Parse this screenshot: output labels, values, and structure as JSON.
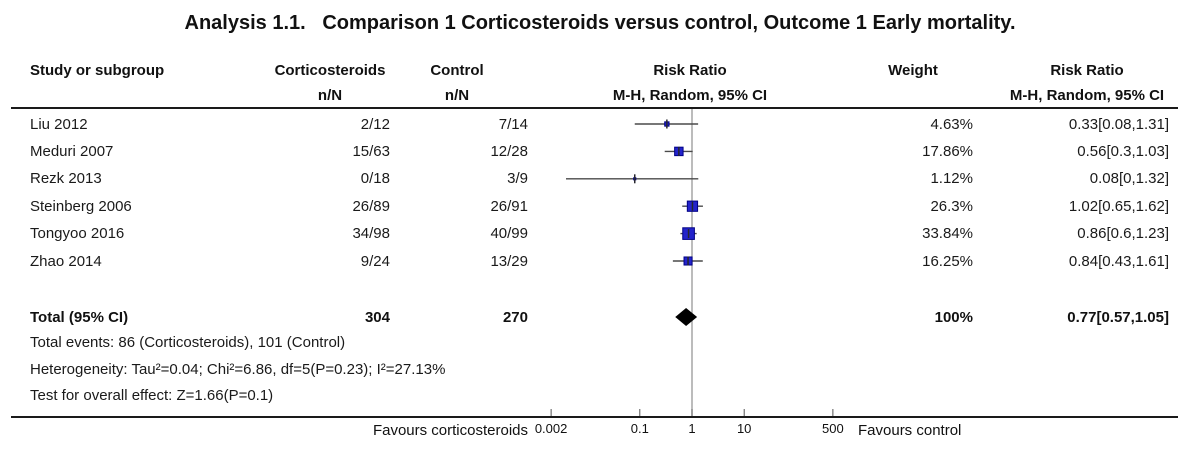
{
  "title": "Analysis 1.1.   Comparison 1 Corticosteroids versus control, Outcome 1 Early mortality.",
  "header": {
    "study": "Study or subgroup",
    "treatment_group": "Corticosteroids",
    "control_group": "Control",
    "nN": "n/N",
    "plot_col_line1": "Risk Ratio",
    "plot_col_line2": "M-H, Random, 95% CI",
    "weight": "Weight",
    "rr_col_line1": "Risk Ratio",
    "rr_col_line2": "M-H, Random, 95% CI"
  },
  "chart_data": {
    "type": "forest",
    "x_scale": "log",
    "axis_ticks": [
      "0.002",
      "0.1",
      "1",
      "10",
      "500"
    ],
    "axis_tick_values": [
      0.002,
      0.1,
      1,
      10,
      500
    ],
    "null_line": 1,
    "favours_left": "Favours corticosteroids",
    "favours_right": "Favours control",
    "studies": [
      {
        "name": "Liu 2012",
        "treatment_nN": "2/12",
        "control_nN": "7/14",
        "rr": 0.33,
        "ci_low": 0.08,
        "ci_high": 1.31,
        "weight_pct": 4.63,
        "weight_label": "4.63%",
        "rr_label": "0.33[0.08,1.31]"
      },
      {
        "name": "Meduri 2007",
        "treatment_nN": "15/63",
        "control_nN": "12/28",
        "rr": 0.56,
        "ci_low": 0.3,
        "ci_high": 1.03,
        "weight_pct": 17.86,
        "weight_label": "17.86%",
        "rr_label": "0.56[0.3,1.03]"
      },
      {
        "name": "Rezk 2013",
        "treatment_nN": "0/18",
        "control_nN": "3/9",
        "rr": 0.08,
        "ci_low": 0,
        "ci_high": 1.32,
        "weight_pct": 1.12,
        "weight_label": "1.12%",
        "rr_label": "0.08[0,1.32]"
      },
      {
        "name": "Steinberg 2006",
        "treatment_nN": "26/89",
        "control_nN": "26/91",
        "rr": 1.02,
        "ci_low": 0.65,
        "ci_high": 1.62,
        "weight_pct": 26.3,
        "weight_label": "26.3%",
        "rr_label": "1.02[0.65,1.62]"
      },
      {
        "name": "Tongyoo 2016",
        "treatment_nN": "34/98",
        "control_nN": "40/99",
        "rr": 0.86,
        "ci_low": 0.6,
        "ci_high": 1.23,
        "weight_pct": 33.84,
        "weight_label": "33.84%",
        "rr_label": "0.86[0.6,1.23]"
      },
      {
        "name": "Zhao 2014",
        "treatment_nN": "9/24",
        "control_nN": "13/29",
        "rr": 0.84,
        "ci_low": 0.43,
        "ci_high": 1.61,
        "weight_pct": 16.25,
        "weight_label": "16.25%",
        "rr_label": "0.84[0.43,1.61]"
      }
    ],
    "total": {
      "label": "Total (95% CI)",
      "treatment_total": "304",
      "control_total": "270",
      "rr": 0.77,
      "ci_low": 0.57,
      "ci_high": 1.05,
      "weight_label": "100%",
      "rr_label": "0.77[0.57,1.05]"
    },
    "footnotes": [
      "Total events: 86 (Corticosteroids), 101 (Control)",
      "Heterogeneity: Tau²=0.04; Chi²=6.86, df=5(P=0.23); I²=27.13%",
      "Test for overall effect: Z=1.66(P=0.1)"
    ]
  },
  "colors": {
    "marker_fill": "#2323cb",
    "marker_border": "#000085",
    "ci_line": "#4a4a4a",
    "point_tick": "#26262e",
    "null_line": "#909090",
    "axis_tick": "#555555",
    "diamond": "#000000",
    "rule": "#1a1a1a",
    "text": "#1a1a1a"
  }
}
